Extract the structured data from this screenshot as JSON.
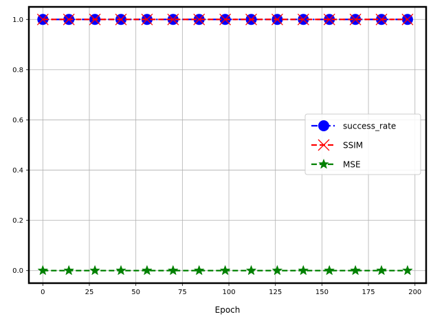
{
  "chart_data": {
    "type": "line",
    "title": "",
    "xlabel": "Epoch",
    "ylabel": "",
    "xlim": [
      -7.5,
      206
    ],
    "ylim": [
      -0.05,
      1.05
    ],
    "xticks": [
      "0",
      "25",
      "50",
      "75",
      "100",
      "125",
      "150",
      "175",
      "200"
    ],
    "yticks": [
      "0.0",
      "0.2",
      "0.4",
      "0.6",
      "0.8",
      "1.0"
    ],
    "grid": true,
    "legend_position": "center-right",
    "x": [
      0,
      14,
      28,
      42,
      56,
      70,
      84,
      98,
      112,
      126,
      140,
      154,
      168,
      182,
      196
    ],
    "series": [
      {
        "name": "success_rate",
        "color": "#0000ff",
        "marker": "circle",
        "linestyle": "dashdot",
        "values": [
          1,
          1,
          1,
          1,
          1,
          1,
          1,
          1,
          1,
          1,
          1,
          1,
          1,
          1,
          1
        ]
      },
      {
        "name": "SSIM",
        "color": "#ff0000",
        "marker": "x",
        "linestyle": "dashed",
        "values": [
          1,
          1,
          1,
          1,
          1,
          1,
          1,
          1,
          1,
          1,
          1,
          1,
          1,
          1,
          1
        ]
      },
      {
        "name": "MSE",
        "color": "#008000",
        "marker": "star",
        "linestyle": "dashed",
        "values": [
          0,
          0,
          0,
          0,
          0,
          0,
          0,
          0,
          0,
          0,
          0,
          0,
          0,
          0,
          0
        ]
      }
    ]
  }
}
